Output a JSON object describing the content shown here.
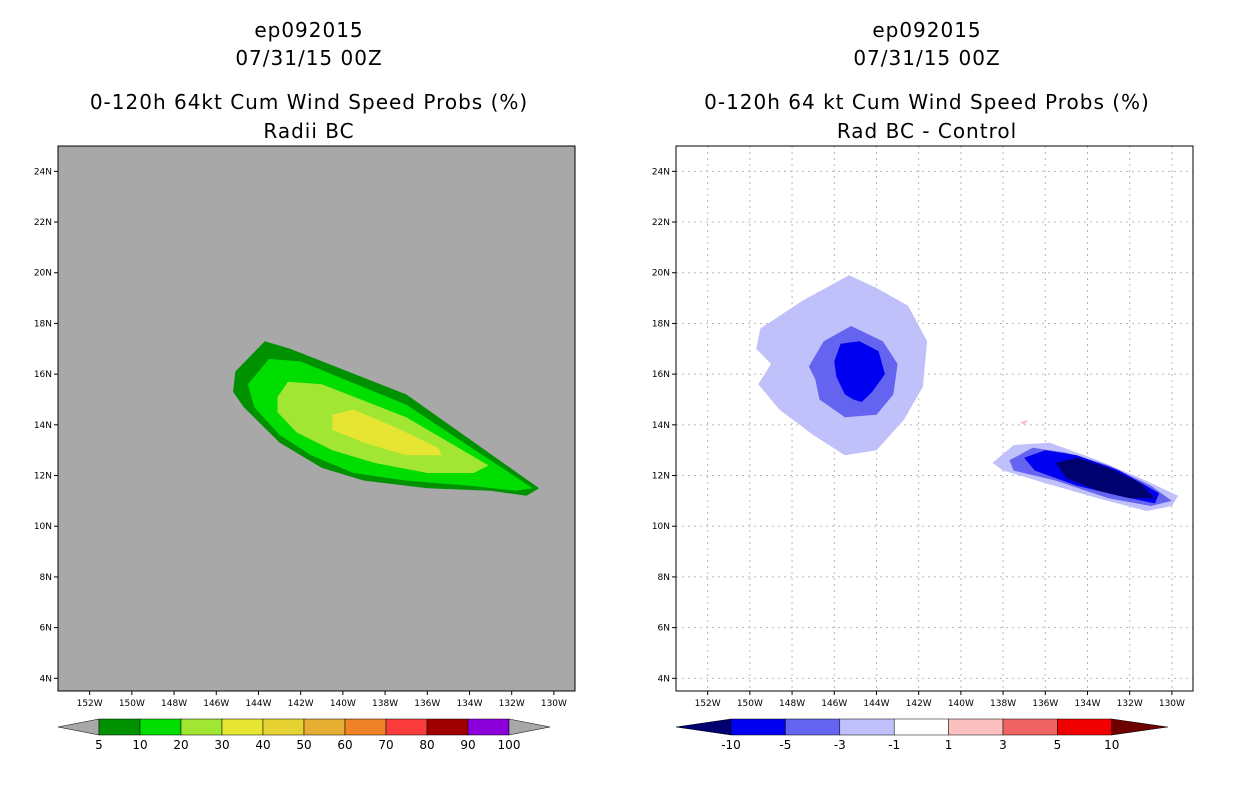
{
  "colors": {
    "ocean_gray": "#a8a8a8",
    "grid_dotted": "#b8b8b8",
    "prob_scale": [
      "#009100",
      "#00dd00",
      "#a0e632",
      "#e6e632",
      "#e6d232",
      "#e6ae32",
      "#f08228",
      "#fa3c3c",
      "#a00000",
      "#8c00dc"
    ],
    "diff_scale": [
      "#00006e",
      "#0000f0",
      "#6464f0",
      "#c0c0fa",
      "#ffffff",
      "#fac0c0",
      "#f06464",
      "#f00000",
      "#6e0000"
    ]
  },
  "chart_data": [
    {
      "type": "contour",
      "storm_id": "ep092015",
      "datetime": "07/31/15 00Z",
      "title": "0-120h 64kt Cum Wind Speed Probs (%)",
      "subtitle": "Radii BC",
      "x_ticks": [
        "152W",
        "150W",
        "148W",
        "146W",
        "144W",
        "142W",
        "140W",
        "138W",
        "136W",
        "134W",
        "132W",
        "130W"
      ],
      "y_ticks": [
        "4N",
        "6N",
        "8N",
        "10N",
        "12N",
        "14N",
        "16N",
        "18N",
        "20N",
        "22N",
        "24N"
      ],
      "xlim": [
        -153.5,
        -129.0
      ],
      "ylim": [
        3.5,
        25.0
      ],
      "grid": false,
      "colorbar_labels": [
        "5",
        "10",
        "20",
        "30",
        "40",
        "50",
        "60",
        "70",
        "80",
        "90",
        "100"
      ],
      "contours": [
        {
          "level": "5-10",
          "polygon": [
            [
              -145.1,
              16.1
            ],
            [
              -143.7,
              17.3
            ],
            [
              -142.5,
              17.0
            ],
            [
              -137.0,
              15.2
            ],
            [
              -130.7,
              11.5
            ],
            [
              -131.3,
              11.2
            ],
            [
              -133.0,
              11.4
            ],
            [
              -136.0,
              11.5
            ],
            [
              -139.0,
              11.8
            ],
            [
              -141.0,
              12.3
            ],
            [
              -143.0,
              13.3
            ],
            [
              -144.7,
              14.7
            ],
            [
              -145.2,
              15.3
            ]
          ]
        },
        {
          "level": "10-20",
          "polygon": [
            [
              -144.5,
              15.6
            ],
            [
              -143.5,
              16.6
            ],
            [
              -142.0,
              16.5
            ],
            [
              -137.0,
              14.8
            ],
            [
              -131.0,
              11.5
            ],
            [
              -131.8,
              11.4
            ],
            [
              -134.0,
              11.6
            ],
            [
              -137.0,
              11.8
            ],
            [
              -139.5,
              12.1
            ],
            [
              -141.5,
              12.8
            ],
            [
              -143.0,
              13.6
            ],
            [
              -144.2,
              14.7
            ]
          ]
        },
        {
          "level": "20-30",
          "polygon": [
            [
              -143.1,
              15.1
            ],
            [
              -142.6,
              15.7
            ],
            [
              -141.0,
              15.6
            ],
            [
              -137.0,
              14.3
            ],
            [
              -133.1,
              12.4
            ],
            [
              -133.8,
              12.1
            ],
            [
              -136.0,
              12.1
            ],
            [
              -138.5,
              12.5
            ],
            [
              -140.5,
              13.0
            ],
            [
              -142.2,
              13.7
            ],
            [
              -143.1,
              14.5
            ]
          ]
        },
        {
          "level": "30-40",
          "polygon": [
            [
              -140.5,
              14.4
            ],
            [
              -139.5,
              14.6
            ],
            [
              -137.5,
              13.9
            ],
            [
              -135.5,
              13.1
            ],
            [
              -135.3,
              12.8
            ],
            [
              -137.0,
              12.8
            ],
            [
              -139.0,
              13.3
            ],
            [
              -140.5,
              13.8
            ]
          ]
        }
      ]
    },
    {
      "type": "contour",
      "storm_id": "ep092015",
      "datetime": "07/31/15 00Z",
      "title": "0-120h 64 kt Cum Wind Speed Probs (%)",
      "subtitle": "Rad BC - Control",
      "x_ticks": [
        "152W",
        "150W",
        "148W",
        "146W",
        "144W",
        "142W",
        "140W",
        "138W",
        "136W",
        "134W",
        "132W",
        "130W"
      ],
      "y_ticks": [
        "4N",
        "6N",
        "8N",
        "10N",
        "12N",
        "14N",
        "16N",
        "18N",
        "20N",
        "22N",
        "24N"
      ],
      "xlim": [
        -153.5,
        -129.0
      ],
      "ylim": [
        3.5,
        25.0
      ],
      "grid": true,
      "colorbar_labels": [
        "-10",
        "-5",
        "-3",
        "-1",
        "1",
        "3",
        "5",
        "10"
      ],
      "contours": [
        {
          "level": "-3 to -1",
          "polygon": [
            [
              -149.5,
              17.8
            ],
            [
              -147.5,
              18.9
            ],
            [
              -145.3,
              19.9
            ],
            [
              -144.0,
              19.4
            ],
            [
              -142.5,
              18.7
            ],
            [
              -141.6,
              17.3
            ],
            [
              -141.8,
              15.5
            ],
            [
              -142.7,
              14.2
            ],
            [
              -144.0,
              13.0
            ],
            [
              -145.5,
              12.8
            ],
            [
              -147.0,
              13.6
            ],
            [
              -148.6,
              14.6
            ],
            [
              -149.6,
              15.6
            ],
            [
              -149.0,
              16.4
            ],
            [
              -149.7,
              17.0
            ]
          ]
        },
        {
          "level": "-3 to -1",
          "polygon": [
            [
              -138.5,
              12.5
            ],
            [
              -137.5,
              13.2
            ],
            [
              -135.8,
              13.3
            ],
            [
              -133.5,
              12.6
            ],
            [
              -131.5,
              11.9
            ],
            [
              -129.7,
              11.2
            ],
            [
              -130.0,
              10.8
            ],
            [
              -131.2,
              10.6
            ],
            [
              -133.5,
              11.1
            ],
            [
              -136.0,
              11.7
            ],
            [
              -138.0,
              12.2
            ]
          ]
        },
        {
          "level": "-5 to -3",
          "polygon": [
            [
              -147.2,
              16.3
            ],
            [
              -146.5,
              17.3
            ],
            [
              -145.2,
              17.9
            ],
            [
              -143.7,
              17.3
            ],
            [
              -143.0,
              16.4
            ],
            [
              -143.2,
              15.2
            ],
            [
              -144.0,
              14.4
            ],
            [
              -145.5,
              14.3
            ],
            [
              -146.7,
              15.0
            ],
            [
              -146.9,
              15.8
            ]
          ]
        },
        {
          "level": "-5 to -3",
          "polygon": [
            [
              -137.7,
              12.6
            ],
            [
              -136.6,
              13.1
            ],
            [
              -135.0,
              12.9
            ],
            [
              -133.0,
              12.4
            ],
            [
              -131.0,
              11.6
            ],
            [
              -130.0,
              11.0
            ],
            [
              -131.0,
              10.8
            ],
            [
              -133.0,
              11.1
            ],
            [
              -135.5,
              11.8
            ],
            [
              -137.5,
              12.2
            ]
          ]
        },
        {
          "level": "-10 to -5",
          "polygon": [
            [
              -146.0,
              16.5
            ],
            [
              -145.7,
              17.2
            ],
            [
              -144.8,
              17.3
            ],
            [
              -143.9,
              16.9
            ],
            [
              -143.6,
              16.0
            ],
            [
              -144.2,
              15.3
            ],
            [
              -144.7,
              14.9
            ],
            [
              -145.1,
              15.0
            ],
            [
              -145.5,
              15.2
            ],
            [
              -145.9,
              15.9
            ]
          ]
        },
        {
          "level": "-10 to -5",
          "polygon": [
            [
              -137.0,
              12.7
            ],
            [
              -136.0,
              13.0
            ],
            [
              -134.5,
              12.8
            ],
            [
              -132.5,
              12.2
            ],
            [
              -130.6,
              11.3
            ],
            [
              -130.8,
              10.9
            ],
            [
              -132.5,
              11.2
            ],
            [
              -134.5,
              11.6
            ],
            [
              -136.5,
              12.2
            ]
          ]
        },
        {
          "level": "< -10",
          "polygon": [
            [
              -135.5,
              12.5
            ],
            [
              -134.5,
              12.7
            ],
            [
              -133.0,
              12.3
            ],
            [
              -131.5,
              11.7
            ],
            [
              -130.8,
              11.1
            ],
            [
              -132.0,
              11.1
            ],
            [
              -133.5,
              11.4
            ],
            [
              -135.0,
              11.9
            ]
          ]
        },
        {
          "level": "1 to 3",
          "polygon": [
            [
              -137.2,
              14.1
            ],
            [
              -136.8,
              14.2
            ],
            [
              -137.0,
              14.0
            ]
          ]
        }
      ]
    }
  ]
}
